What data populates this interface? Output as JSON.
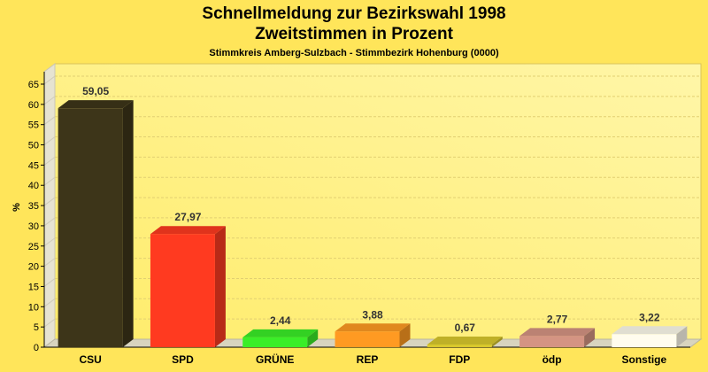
{
  "colors": {
    "background": "#ffe55a",
    "plot_gradient_start": "#ffec6a",
    "plot_gradient_end": "#fff6a8"
  },
  "chart_data": {
    "type": "bar",
    "title": "Schnellmeldung zur Bezirkswahl 1998",
    "subtitle": "Zweitstimmen in Prozent",
    "subsubtitle": "Stimmkreis Amberg-Sulzbach - Stimmbezirk Hohenburg (0000)",
    "ylabel": "%",
    "xlabel": "",
    "ylim": [
      0,
      65
    ],
    "yticks": [
      0,
      5,
      10,
      15,
      20,
      25,
      30,
      35,
      40,
      45,
      50,
      55,
      60,
      65
    ],
    "grid": true,
    "categories": [
      "CSU",
      "SPD",
      "GRÜNE",
      "REP",
      "FDP",
      "ödp",
      "Sonstige"
    ],
    "values": [
      59.05,
      27.97,
      2.44,
      3.88,
      0.67,
      2.77,
      3.22
    ],
    "value_labels": [
      "59,05",
      "27,97",
      "2,44",
      "3,88",
      "0,67",
      "2,77",
      "3,22"
    ],
    "bar_colors": [
      "#3d3519",
      "#ff3a20",
      "#3aee28",
      "#ff9a22",
      "#d9c82c",
      "#d49483",
      "#fffcee"
    ]
  }
}
